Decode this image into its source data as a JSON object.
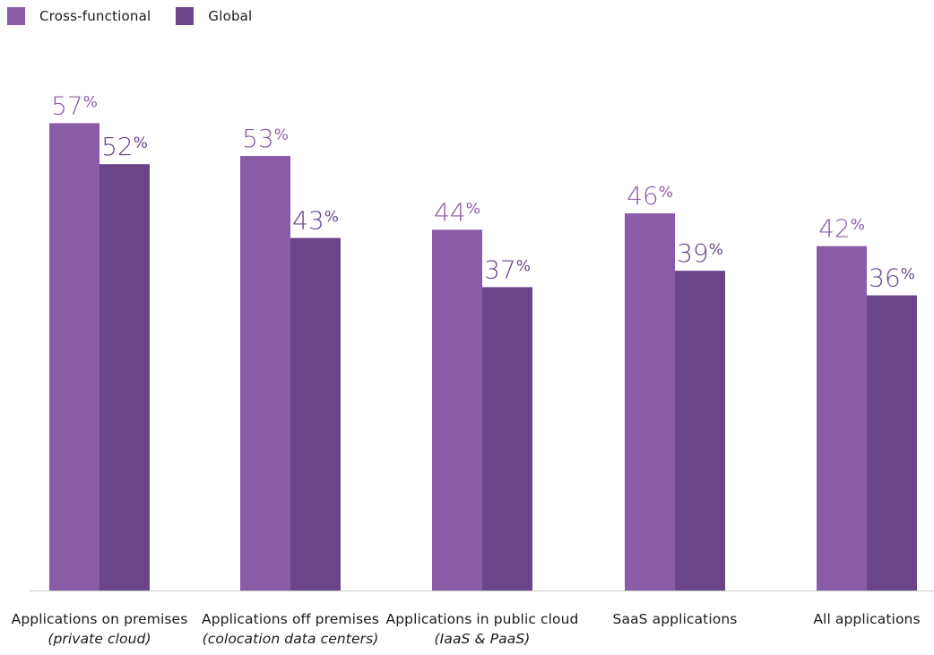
{
  "chart_data": {
    "type": "bar",
    "categories": [
      {
        "main": "Applications on premises",
        "sub": "(private cloud)"
      },
      {
        "main": "Applications off premises",
        "sub": "(colocation data centers)"
      },
      {
        "main": "Applications in public cloud",
        "sub": "(IaaS & PaaS)"
      },
      {
        "main": "SaaS applications",
        "sub": ""
      },
      {
        "main": "All applications",
        "sub": ""
      }
    ],
    "series": [
      {
        "name": "Cross-functional",
        "color": "#8a5ca8",
        "values": [
          57,
          53,
          44,
          46,
          42
        ]
      },
      {
        "name": "Global",
        "color": "#6a4689",
        "values": [
          52,
          43,
          37,
          39,
          36
        ]
      }
    ],
    "value_suffix": "%",
    "ylim": [
      0,
      60
    ],
    "grid": false,
    "legend_position": "top-left",
    "axis_color": "#c8c8c8"
  }
}
